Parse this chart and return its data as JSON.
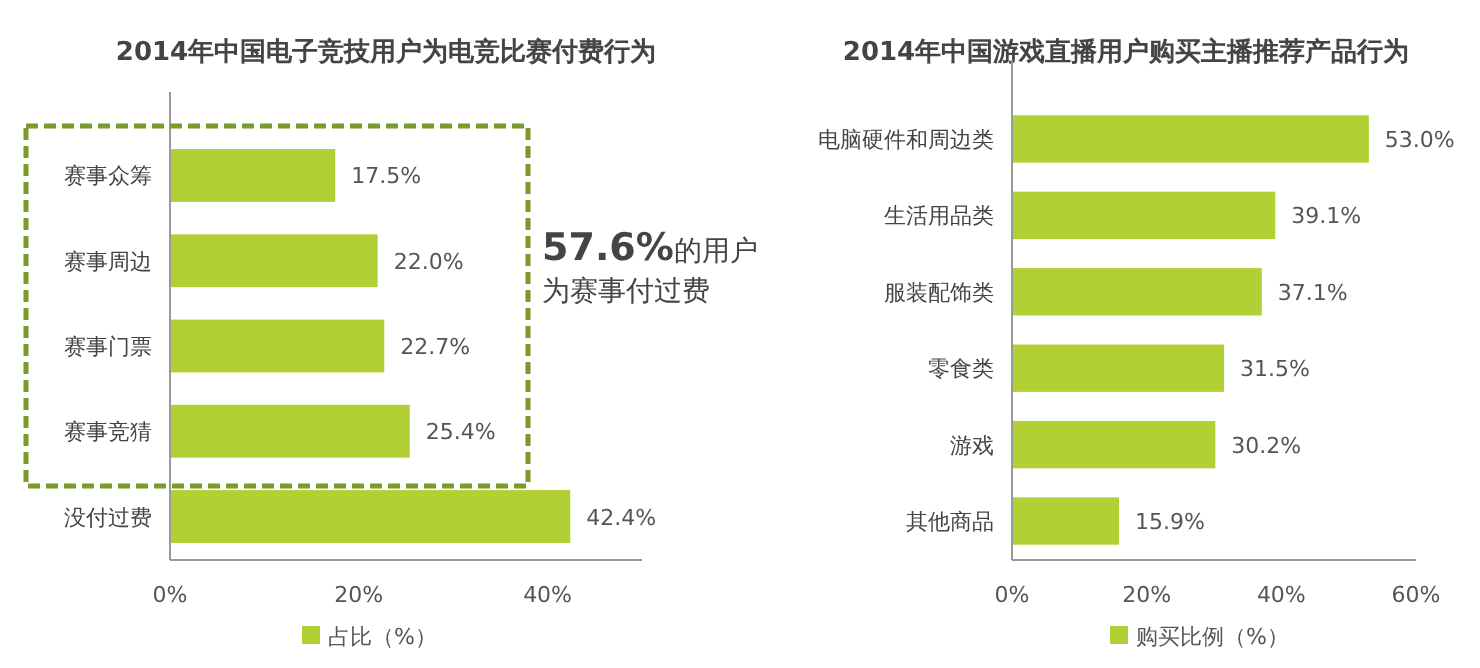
{
  "chart_data": [
    {
      "type": "bar",
      "orientation": "horizontal",
      "title": "2014年中国电子竞技用户为电竞比赛付费行为",
      "categories": [
        "赛事众筹",
        "赛事周边",
        "赛事门票",
        "赛事竞猜",
        "没付过费"
      ],
      "series": [
        {
          "name": "占比（%）",
          "color": "#b1d034",
          "values": [
            17.5,
            22.0,
            22.7,
            25.4,
            42.4
          ]
        }
      ],
      "value_labels": [
        "17.5%",
        "22.0%",
        "22.7%",
        "25.4%",
        "42.4%"
      ],
      "xlim": [
        0,
        50
      ],
      "xticks": [
        {
          "value": 0,
          "label": "0%"
        },
        {
          "value": 20,
          "label": "20%"
        },
        {
          "value": 40,
          "label": "40%"
        }
      ],
      "legend": "bottom",
      "grid": false,
      "annotations": [
        "57.6%的用户",
        "为赛事付过费"
      ]
    },
    {
      "type": "bar",
      "orientation": "horizontal",
      "title": "2014年中国游戏直播用户购买主播推荐产品行为",
      "categories": [
        "电脑硬件和周边类",
        "生活用品类",
        "服装配饰类",
        "零食类",
        "游戏",
        "其他商品"
      ],
      "series": [
        {
          "name": "购买比例（%）",
          "color": "#b1d034",
          "values": [
            53.0,
            39.1,
            37.1,
            31.5,
            30.2,
            15.9
          ]
        }
      ],
      "value_labels": [
        "53.0%",
        "39.1%",
        "37.1%",
        "31.5%",
        "30.2%",
        "15.9%"
      ],
      "xlim": [
        0,
        60
      ],
      "xticks": [
        {
          "value": 0,
          "label": "0%"
        },
        {
          "value": 20,
          "label": "20%"
        },
        {
          "value": 40,
          "label": "40%"
        },
        {
          "value": 60,
          "label": "60%"
        }
      ],
      "legend": "bottom",
      "grid": false
    }
  ]
}
